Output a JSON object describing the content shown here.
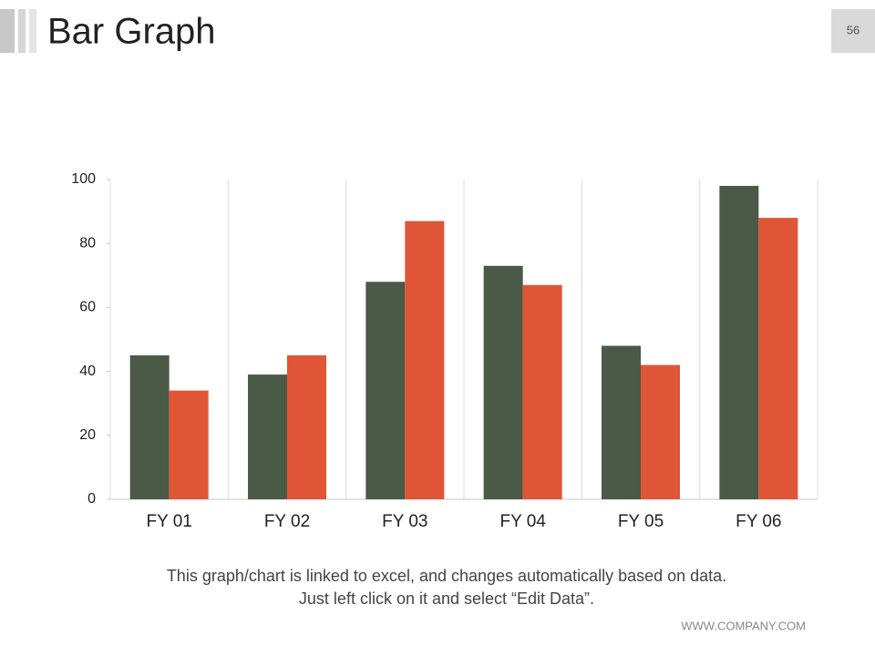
{
  "slide": {
    "title": "Bar Graph",
    "page_number": "56",
    "caption": [
      "This graph/chart is linked to excel, and changes automatically based on data.",
      "Just left click on it and select “Edit Data”."
    ],
    "footer": "WWW.COMPANY.COM"
  },
  "chart_data": {
    "type": "bar",
    "categories": [
      "FY 01",
      "FY 02",
      "FY 03",
      "FY 04",
      "FY 05",
      "FY 06"
    ],
    "series": [
      {
        "color": "#4a5a47",
        "values": [
          45,
          39,
          68,
          73,
          48,
          98
        ]
      },
      {
        "color": "#e05535",
        "values": [
          34,
          45,
          87,
          67,
          42,
          88
        ]
      }
    ],
    "ylim": [
      0,
      100
    ],
    "yticks": [
      0,
      20,
      40,
      60,
      80,
      100
    ]
  }
}
